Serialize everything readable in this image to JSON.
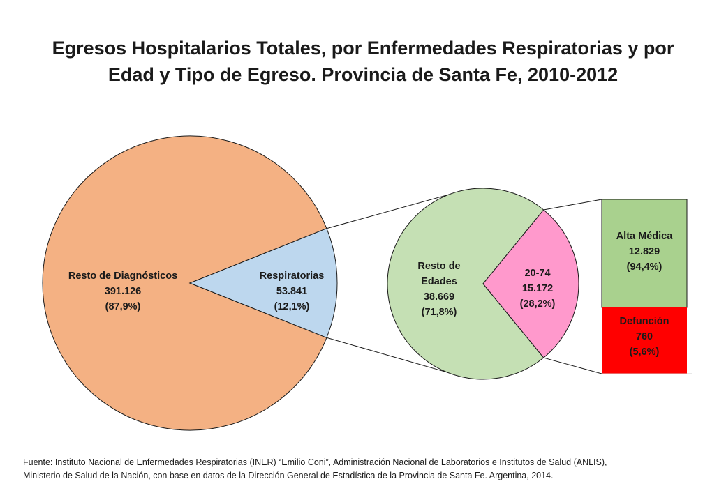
{
  "title_lines": [
    "Egresos Hospitalarios Totales, por Enfermedades Respiratorias y por",
    "Edad y Tipo de Egreso. Provincia de Santa Fe, 2010-2012"
  ],
  "source_lines": [
    "Fuente: Instituto Nacional de Enfermedades Respiratorias (INER) “Emilio Coni”, Administración Nacional de Laboratorios e Institutos de Salud (ANLIS),",
    "Ministerio de Salud de la Nación, con base en datos de la Dirección General de Estadística de la Provincia de Santa Fe. Argentina, 2014."
  ],
  "colors": {
    "resto_diagnosticos": "#F4B183",
    "respiratorias": "#BDD7EE",
    "resto_edades": "#C5E0B4",
    "edad_20_74": "#FF99CC",
    "alta_medica": "#A9D18E",
    "defuncion": "#FF0000",
    "outline": "#1a1a1a",
    "connector": "#1a1a1a"
  },
  "chart_data": [
    {
      "type": "pie",
      "slices": [
        {
          "label": "Resto de Diagnósticos",
          "value": 391126,
          "value_text": "391.126",
          "percent_text": "(87,9%)",
          "percent": 87.9
        },
        {
          "label": "Respiratorias",
          "value": 53841,
          "value_text": "53.841",
          "percent_text": "(12,1%)",
          "percent": 12.1
        }
      ]
    },
    {
      "type": "pie",
      "slices": [
        {
          "label_lines": [
            "Resto de",
            "Edades"
          ],
          "value": 38669,
          "value_text": "38.669",
          "percent_text": "(71,8%)",
          "percent": 71.8
        },
        {
          "label_lines": [
            "20-74"
          ],
          "value": 15172,
          "value_text": "15.172",
          "percent_text": "(28,2%)",
          "percent": 28.2
        }
      ]
    },
    {
      "type": "bar",
      "stacked": true,
      "segments": [
        {
          "label": "Alta Médica",
          "value": 12829,
          "value_text": "12.829",
          "percent_text": "(94,4%)",
          "percent": 94.4
        },
        {
          "label": "Defunción",
          "value": 760,
          "value_text": "760",
          "percent_text": "(5,6%)",
          "percent": 5.6
        }
      ]
    }
  ]
}
